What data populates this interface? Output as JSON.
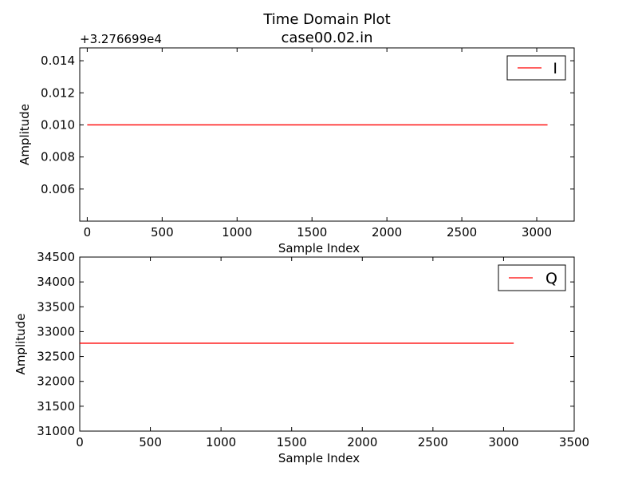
{
  "figure": {
    "title_line1": "Time Domain Plot",
    "title_line2": "case00.02.in",
    "line_color": "#ff0000"
  },
  "chart_data": [
    {
      "type": "line",
      "title": "",
      "offset_text": "+3.276699e4",
      "xlabel": "Sample Index",
      "ylabel": "Amplitude",
      "xlim": [
        -50,
        3250
      ],
      "ylim": [
        0.004,
        0.0148
      ],
      "x_ticks": [
        0,
        500,
        1000,
        1500,
        2000,
        2500,
        3000
      ],
      "y_ticks": [
        0.006,
        0.008,
        0.01,
        0.012,
        0.014
      ],
      "y_tick_labels": [
        "0.006",
        "0.008",
        "0.010",
        "0.012",
        "0.014"
      ],
      "grid": false,
      "legend_position": "top-right",
      "series": [
        {
          "name": "I",
          "x": [
            0,
            3072
          ],
          "values": [
            0.01,
            0.01
          ]
        }
      ]
    },
    {
      "type": "line",
      "title": "",
      "xlabel": "Sample Index",
      "ylabel": "Amplitude",
      "xlim": [
        0,
        3500
      ],
      "ylim": [
        31000,
        34500
      ],
      "x_ticks": [
        0,
        500,
        1000,
        1500,
        2000,
        2500,
        3000,
        3500
      ],
      "y_ticks": [
        31000,
        31500,
        32000,
        32500,
        33000,
        33500,
        34000,
        34500
      ],
      "y_tick_labels": [
        "31000",
        "31500",
        "32000",
        "32500",
        "33000",
        "33500",
        "34000",
        "34500"
      ],
      "grid": false,
      "legend_position": "top-right",
      "series": [
        {
          "name": "Q",
          "x": [
            0,
            3072
          ],
          "values": [
            32767,
            32767
          ]
        }
      ]
    }
  ]
}
